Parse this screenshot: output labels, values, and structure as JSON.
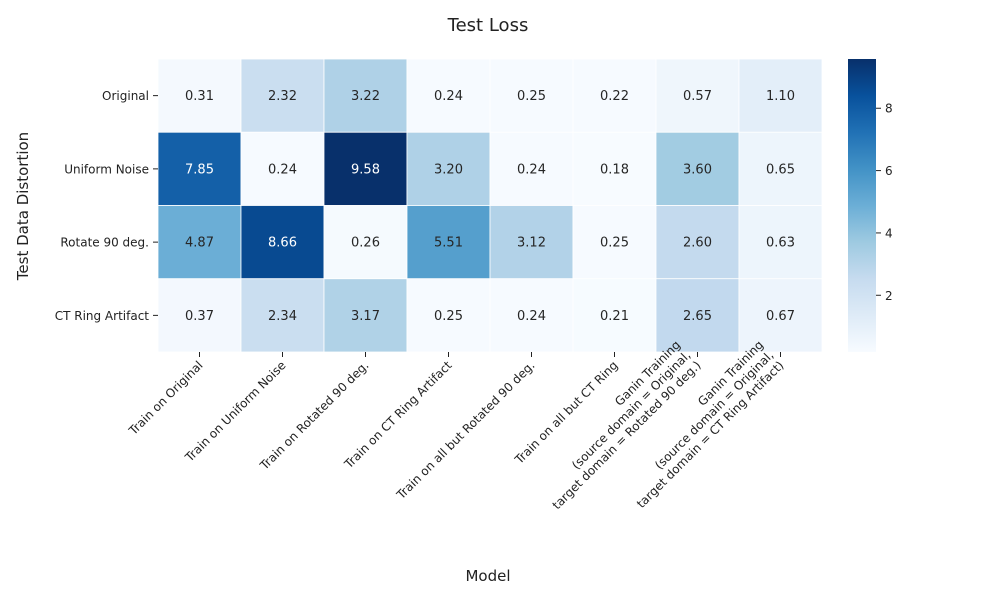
{
  "chart_data": {
    "type": "heatmap",
    "title": "Test Loss",
    "xlabel": "Model",
    "ylabel": "Test Data Distortion",
    "rows": [
      "Original",
      "Uniform Noise",
      "Rotate 90 deg.",
      "CT Ring Artifact"
    ],
    "columns": [
      [
        "Train on Original"
      ],
      [
        "Train on Uniform Noise"
      ],
      [
        "Train on Rotated 90 deg."
      ],
      [
        "Train on CT Ring Artifact"
      ],
      [
        "Train on all but Rotated 90 deg."
      ],
      [
        "Train on all but CT Ring"
      ],
      [
        "Ganin Training",
        "(source domain = Original,",
        "target domain = Rotated 90 deg.)"
      ],
      [
        "Ganin Training",
        "(source domain = Original,",
        "target domain = CT Ring Artifact)"
      ]
    ],
    "values": [
      [
        0.31,
        2.32,
        3.22,
        0.24,
        0.25,
        0.22,
        0.57,
        1.1
      ],
      [
        7.85,
        0.24,
        9.58,
        3.2,
        0.24,
        0.18,
        3.6,
        0.65
      ],
      [
        4.87,
        8.66,
        0.26,
        5.51,
        3.12,
        0.25,
        2.6,
        0.63
      ],
      [
        0.37,
        2.34,
        3.17,
        0.25,
        0.24,
        0.21,
        2.65,
        0.67
      ]
    ],
    "value_labels": [
      [
        "0.31",
        "2.32",
        "3.22",
        "0.24",
        "0.25",
        "0.22",
        "0.57",
        "1.10"
      ],
      [
        "7.85",
        "0.24",
        "9.58",
        "3.20",
        "0.24",
        "0.18",
        "3.60",
        "0.65"
      ],
      [
        "4.87",
        "8.66",
        "0.26",
        "5.51",
        "3.12",
        "0.25",
        "2.60",
        "0.63"
      ],
      [
        "0.37",
        "2.34",
        "3.17",
        "0.25",
        "0.24",
        "0.21",
        "2.65",
        "0.67"
      ]
    ],
    "colormap": "Blues",
    "vmin": 0.18,
    "vmax": 9.58,
    "colorbar_ticks": [
      "2",
      "4",
      "6",
      "8"
    ],
    "colorbar_tick_values": [
      2,
      4,
      6,
      8
    ]
  }
}
